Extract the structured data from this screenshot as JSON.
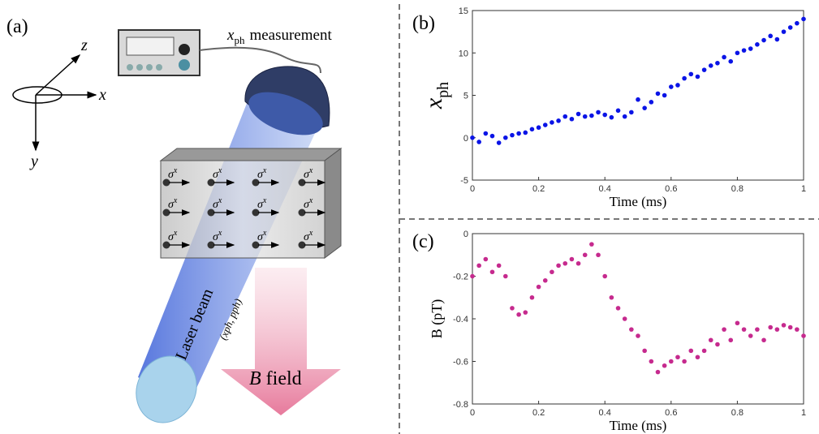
{
  "panels": {
    "a": "(a)",
    "b": "(b)",
    "c": "(c)"
  },
  "diagram": {
    "axis_z": "z",
    "axis_x": "x",
    "axis_y": "y",
    "measurement_var": "x",
    "measurement_sub": "ph",
    "measurement_text": "measurement",
    "sigma": "σ",
    "sigma_sup": "x",
    "laser_label": "Laser beam",
    "laser_params": "(xph, pph)",
    "field_var": "B",
    "field_text": "field"
  },
  "chart_data": [
    {
      "type": "scatter",
      "xlabel": "Time (ms)",
      "ylabel": "x",
      "ylabel_sub": "ph",
      "color": "#0a14e6",
      "x": [
        0,
        0.02,
        0.04,
        0.06,
        0.08,
        0.1,
        0.12,
        0.14,
        0.16,
        0.18,
        0.2,
        0.22,
        0.24,
        0.26,
        0.28,
        0.3,
        0.32,
        0.34,
        0.36,
        0.38,
        0.4,
        0.42,
        0.44,
        0.46,
        0.48,
        0.5,
        0.52,
        0.54,
        0.56,
        0.58,
        0.6,
        0.62,
        0.64,
        0.66,
        0.68,
        0.7,
        0.72,
        0.74,
        0.76,
        0.78,
        0.8,
        0.82,
        0.84,
        0.86,
        0.88,
        0.9,
        0.92,
        0.94,
        0.96,
        0.98,
        1
      ],
      "values": [
        0,
        -0.5,
        0.5,
        0.2,
        -0.6,
        0,
        0.3,
        0.5,
        0.6,
        1,
        1.2,
        1.5,
        1.8,
        2,
        2.5,
        2.2,
        2.8,
        2.5,
        2.6,
        3,
        2.7,
        2.4,
        3.2,
        2.5,
        3,
        4.5,
        3.5,
        4.2,
        5.2,
        5,
        6,
        6.2,
        7,
        7.5,
        7.2,
        8,
        8.5,
        8.8,
        9.5,
        9,
        10,
        10.3,
        10.5,
        11,
        11.5,
        12,
        11.6,
        12.5,
        13,
        13.5,
        14
      ],
      "xlim": [
        0,
        1
      ],
      "ylim": [
        -5,
        15
      ],
      "xticks": [
        0,
        0.2,
        0.4,
        0.6,
        0.8,
        1
      ],
      "yticks": [
        -5,
        0,
        5,
        10,
        15
      ]
    },
    {
      "type": "scatter",
      "xlabel": "Time (ms)",
      "ylabel": "B (pT)",
      "color": "#c62a8e",
      "x": [
        0,
        0.02,
        0.04,
        0.06,
        0.08,
        0.1,
        0.12,
        0.14,
        0.16,
        0.18,
        0.2,
        0.22,
        0.24,
        0.26,
        0.28,
        0.3,
        0.32,
        0.34,
        0.36,
        0.38,
        0.4,
        0.42,
        0.44,
        0.46,
        0.48,
        0.5,
        0.52,
        0.54,
        0.56,
        0.58,
        0.6,
        0.62,
        0.64,
        0.66,
        0.68,
        0.7,
        0.72,
        0.74,
        0.76,
        0.78,
        0.8,
        0.82,
        0.84,
        0.86,
        0.88,
        0.9,
        0.92,
        0.94,
        0.96,
        0.98,
        1
      ],
      "values": [
        -0.2,
        -0.15,
        -0.12,
        -0.18,
        -0.15,
        -0.2,
        -0.35,
        -0.38,
        -0.37,
        -0.3,
        -0.25,
        -0.22,
        -0.18,
        -0.15,
        -0.14,
        -0.12,
        -0.14,
        -0.1,
        -0.05,
        -0.1,
        -0.2,
        -0.3,
        -0.35,
        -0.4,
        -0.45,
        -0.48,
        -0.55,
        -0.6,
        -0.65,
        -0.62,
        -0.6,
        -0.58,
        -0.6,
        -0.55,
        -0.58,
        -0.55,
        -0.5,
        -0.52,
        -0.45,
        -0.5,
        -0.42,
        -0.45,
        -0.48,
        -0.45,
        -0.5,
        -0.44,
        -0.45,
        -0.43,
        -0.44,
        -0.45,
        -0.48
      ],
      "xlim": [
        0,
        1
      ],
      "ylim": [
        -0.8,
        0
      ],
      "xticks": [
        0,
        0.2,
        0.4,
        0.6,
        0.8,
        1
      ],
      "yticks": [
        -0.8,
        -0.6,
        -0.4,
        -0.2,
        0
      ]
    }
  ]
}
